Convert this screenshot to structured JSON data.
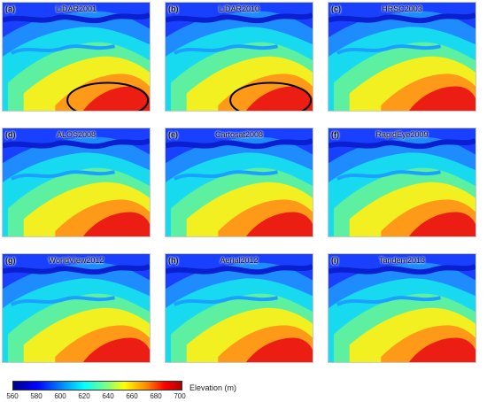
{
  "panels": [
    {
      "label": "(a)",
      "title": "LiDAR2001",
      "ellipse": true
    },
    {
      "label": "(b)",
      "title": "LiDAR2010",
      "ellipse": true
    },
    {
      "label": "(c)",
      "title": "HRSC2003",
      "ellipse": false
    },
    {
      "label": "(d)",
      "title": "ALOS2008",
      "ellipse": false
    },
    {
      "label": "(e)",
      "title": "Cartosat2008",
      "ellipse": false
    },
    {
      "label": "(f)",
      "title": "RapidEye2009",
      "ellipse": false
    },
    {
      "label": "(g)",
      "title": "WorldView2012",
      "ellipse": false
    },
    {
      "label": "(h)",
      "title": "Aerial2012",
      "ellipse": false
    },
    {
      "label": "(i)",
      "title": "Tandem2013",
      "ellipse": false
    }
  ],
  "colorbar": {
    "ticks": [
      "560",
      "580",
      "600",
      "620",
      "640",
      "660",
      "680",
      "700"
    ],
    "unit_label": "Elevation (m)",
    "colors": [
      "#00008f",
      "#0000ff",
      "#0080ff",
      "#00ffff",
      "#80ff80",
      "#ffff00",
      "#ff8000",
      "#ff0000",
      "#b00000"
    ]
  }
}
